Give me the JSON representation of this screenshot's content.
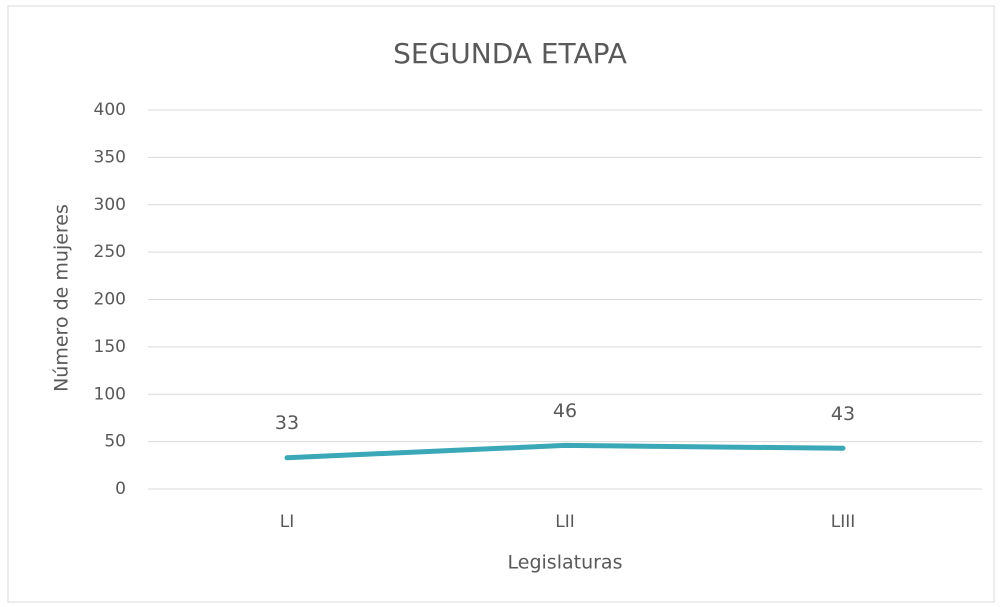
{
  "chart_data": {
    "type": "line",
    "title": "SEGUNDA ETAPA",
    "x_label": "Legislaturas",
    "y_label": "Número de mujeres",
    "categories": [
      "LI",
      "LII",
      "LIII"
    ],
    "series": [
      {
        "name": "Número de mujeres",
        "color": "#3aa8b7",
        "values": [
          33,
          46,
          43
        ]
      }
    ],
    "ylim": [
      0,
      400
    ],
    "yticks": [
      0,
      50,
      100,
      150,
      200,
      250,
      300,
      350,
      400
    ],
    "grid": true,
    "data_labels": true
  }
}
